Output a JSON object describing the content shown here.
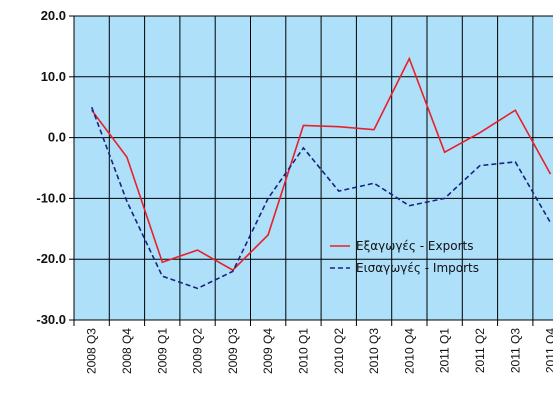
{
  "chart_data": {
    "type": "line",
    "title": "",
    "xlabel": "",
    "ylabel": "",
    "categories": [
      "2008 Q3",
      "2008 Q4",
      "2009 Q1",
      "2009 Q2",
      "2009 Q3",
      "2009 Q4",
      "2010 Q1",
      "2010 Q2",
      "2010 Q3",
      "2010 Q4",
      "2011 Q1",
      "2011 Q2",
      "2011 Q3",
      "2011 Q4"
    ],
    "ylim": [
      -30,
      20
    ],
    "yticks": [
      "20.0",
      "10.0",
      "0.0",
      "-10.0",
      "-20.0",
      "-30.0"
    ],
    "ytick_values": [
      20,
      10,
      0,
      -10,
      -20,
      -30
    ],
    "grid": true,
    "legend_position": "lower-right",
    "series": [
      {
        "name": "Εξαγωγές - Exports",
        "values": [
          4.5,
          -3.2,
          -20.5,
          -18.5,
          -21.8,
          -16.0,
          2.0,
          1.8,
          1.3,
          13.0,
          -2.4,
          0.8,
          4.5,
          -6.0
        ],
        "color": "#e8202a",
        "style": "solid"
      },
      {
        "name": "Εισαγωγές - Imports",
        "values": [
          5.0,
          -10.5,
          -22.8,
          -24.8,
          -22.0,
          -10.0,
          -1.7,
          -8.8,
          -7.5,
          -11.2,
          -10.0,
          -4.6,
          -4.0,
          -14.0
        ],
        "color": "#1a237e",
        "style": "dashed"
      }
    ],
    "colors": {
      "plot_background": "#aee0fa",
      "grid": "#000000"
    }
  }
}
